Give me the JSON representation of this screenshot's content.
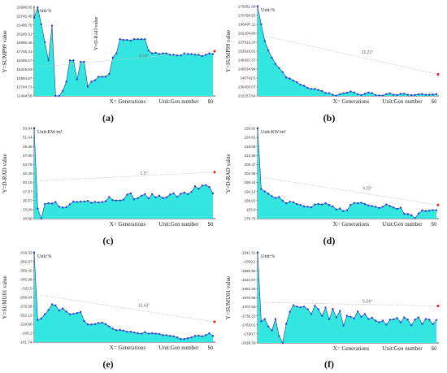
{
  "chart_data": [
    {
      "id": "a",
      "type": "area",
      "panel_label": "(a)",
      "ylabel": "Y=SUMP99 value",
      "xlabel": "X= Generations",
      "unit_x": "Unit:Gen number",
      "unit_y": "Unit:%",
      "x_end_label": "50",
      "inner_label": "Y=D-RAD value",
      "trend_label": "4.74°",
      "yticks": [
        "23996.05",
        "22745.49",
        "21495.75",
        "20245.61",
        "18995.46",
        "17745.31",
        "16495.17",
        "15245.02",
        "13994.87",
        "12744.73",
        "11494.58"
      ],
      "ylim": [
        11494.58,
        23996.05
      ],
      "xlim": [
        0,
        50
      ],
      "values": [
        22500,
        23996,
        21600,
        19100,
        16500,
        21400,
        11494,
        11494,
        12200,
        13500,
        16500,
        16500,
        13800,
        16300,
        16300,
        12800,
        13500,
        13700,
        14200,
        14200,
        14200,
        14600,
        16900,
        17500,
        19500,
        19400,
        19400,
        19300,
        19500,
        19500,
        19500,
        19500,
        17900,
        17500,
        17600,
        17400,
        17500,
        17500,
        17300,
        17300,
        17200,
        17200,
        17500,
        17400,
        17400,
        17300,
        17300,
        17100,
        17300,
        17500,
        17400
      ],
      "trend": [
        15600,
        17800
      ]
    },
    {
      "id": "b",
      "type": "area",
      "panel_label": "(b)",
      "ylabel": "Y=SUMP99 value",
      "xlabel": "X= Generations",
      "unit_x": "Unit:Gen number",
      "unit_y": "Unit:%",
      "x_end_label": "50",
      "trend_label": "15.21°",
      "yticks": [
        "175081.69",
        "170789.55",
        "166497.11",
        "162204.68",
        "157912.24",
        "153619.81",
        "149327.37",
        "145034.94",
        "140742.5",
        "136450.07",
        "132157.64"
      ],
      "ylim": [
        132157.64,
        175081.69
      ],
      "xlim": [
        0,
        50
      ],
      "values": [
        175081,
        166500,
        158500,
        154000,
        150500,
        147500,
        145500,
        143600,
        141000,
        140500,
        139500,
        138700,
        137500,
        137000,
        136000,
        135500,
        135500,
        135000,
        134500,
        133500,
        133500,
        132700,
        132300,
        133000,
        133500,
        133700,
        134300,
        133800,
        133000,
        132500,
        133200,
        133800,
        133500,
        132600,
        132400,
        132300,
        133000,
        133400,
        132700,
        132600,
        133100,
        133200,
        132700,
        132500,
        132600,
        132900,
        133000,
        132700,
        132700,
        132800,
        133000
      ],
      "trend": [
        161000,
        142500
      ]
    },
    {
      "id": "c",
      "type": "area",
      "panel_label": "(c)",
      "ylabel": "Y=D-RAD value",
      "xlabel": "X= Generations",
      "unit_x": "Unit:Gen number",
      "unit_y": "Unit:KW/m²",
      "x_end_label": "50",
      "trend_label": "3.5°",
      "yticks": [
        "53.94",
        "51.64",
        "49.35",
        "47.05",
        "44.75",
        "42.46",
        "40.16",
        "37.87",
        "35.57",
        "33.28",
        "30.98"
      ],
      "ylim": [
        30.98,
        53.94
      ],
      "xlim": [
        0,
        50
      ],
      "values": [
        53.94,
        33.5,
        31.0,
        34.7,
        34.9,
        34.8,
        35.2,
        34.0,
        33.8,
        33.9,
        34.6,
        35.3,
        35.2,
        35.3,
        35.3,
        35.5,
        35.0,
        35.2,
        35.1,
        35.2,
        35.4,
        36.5,
        35.7,
        35.6,
        35.6,
        35.8,
        37.1,
        37.4,
        35.9,
        36.2,
        36.8,
        37.2,
        36.1,
        37.2,
        36.4,
        36.8,
        36.2,
        36.4,
        37.1,
        37.4,
        36.5,
        37.3,
        37.6,
        37.2,
        37.8,
        39.2,
        38.6,
        39.4,
        39.5,
        39.0,
        37.4
      ],
      "trend": [
        40.6,
        42.8
      ]
    },
    {
      "id": "d",
      "type": "area",
      "panel_label": "(d)",
      "ylabel": "Y=D-RAD value",
      "xlabel": "X= Generations",
      "unit_x": "Unit:Gen number",
      "unit_y": "Unit:KW/m²",
      "x_end_label": "50",
      "trend_label": "9.25°",
      "yticks": [
        "229.92",
        "224.81",
        "219.69",
        "214.58",
        "209.47",
        "204.36",
        "199.24",
        "194.13",
        "189.02",
        "183.9",
        "178.79"
      ],
      "ylim": [
        178.79,
        229.92
      ],
      "xlim": [
        0,
        50
      ],
      "values": [
        229.92,
        195.6,
        194.2,
        192.9,
        191.5,
        190.5,
        191.0,
        189.0,
        187.5,
        188.4,
        188.0,
        187.0,
        186.5,
        185.7,
        185.5,
        185.2,
        186.8,
        187.1,
        186.8,
        187.5,
        186.5,
        185.7,
        184.0,
        184.5,
        183.0,
        183.5,
        186.5,
        187.7,
        187.5,
        187.8,
        187.0,
        186.3,
        185.9,
        185.5,
        184.8,
        185.5,
        186.8,
        185.9,
        185.1,
        184.3,
        185.0,
        181.5,
        181.4,
        180.8,
        179.0,
        181.7,
        183.4,
        183.1,
        183.3,
        183.6,
        183.5
      ],
      "trend": [
        202.0,
        186.5
      ]
    },
    {
      "id": "e",
      "type": "area",
      "panel_label": "(e)",
      "ylabel": "Y=SUMU01 value",
      "xlabel": "X= Generations",
      "unit_x": "Unit:Gen number",
      "unit_y": "Unit:%",
      "x_end_label": "50",
      "trend_label": "12.43°",
      "yticks": [
        "-416.33",
        "-392.87",
        "-369.42",
        "-345.96",
        "-322.5",
        "-299.04",
        "-275.58",
        "-252.12",
        "-228.66",
        "-205.2",
        "-181.74"
      ],
      "ylim": [
        -181.74,
        -416.33
      ],
      "xlim": [
        0,
        50
      ],
      "values": [
        -416.33,
        -240.0,
        -244.0,
        -255.0,
        -266.0,
        -281.0,
        -278.0,
        -265.0,
        -270.0,
        -262.0,
        -255.0,
        -256.0,
        -258.0,
        -261.0,
        -237.0,
        -228.5,
        -228.0,
        -229.0,
        -232.0,
        -232.5,
        -229.0,
        -223.0,
        -217.0,
        -213.0,
        -214.0,
        -212.0,
        -209.0,
        -209.0,
        -207.0,
        -205.0,
        -204.0,
        -208.0,
        -204.0,
        -205.0,
        -204.0,
        -203.0,
        -200.0,
        -200.0,
        -198.0,
        -197.0,
        -194.0,
        -190.0,
        -190.0,
        -192.0,
        -194.0,
        -198.0,
        -199.0,
        -197.0,
        -200.0,
        -205.0,
        -198.0
      ],
      "trend": [
        -305.0,
        -235.0
      ]
    },
    {
      "id": "f",
      "type": "area",
      "panel_label": "(f)",
      "ylabel": "Y=SUMU01 value",
      "xlabel": "X= Generations",
      "unit_x": "Unit:Gen number",
      "unit_y": "Unit:%",
      "x_end_label": "50",
      "trend_label": "5.24°",
      "yticks": [
        "-1541.51",
        "-1569.2",
        "-1596.88",
        "-1624.57",
        "-1652.26",
        "-1679.95",
        "-1707.63",
        "-1735.32",
        "-1763.01",
        "-1790.7",
        "-1818.39"
      ],
      "ylim": [
        -1818.39,
        -1541.51
      ],
      "xlim": [
        0,
        50
      ],
      "values": [
        -1541.51,
        -1752.0,
        -1745.0,
        -1768.0,
        -1780.0,
        -1745.0,
        -1797.0,
        -1818.39,
        -1760.0,
        -1723.0,
        -1703.0,
        -1707.0,
        -1709.0,
        -1707.0,
        -1715.0,
        -1730.0,
        -1704.0,
        -1715.0,
        -1735.0,
        -1710.0,
        -1746.0,
        -1714.0,
        -1740.0,
        -1720.0,
        -1765.0,
        -1735.0,
        -1738.0,
        -1743.0,
        -1722.0,
        -1738.0,
        -1730.0,
        -1745.0,
        -1741.0,
        -1750.0,
        -1755.0,
        -1750.0,
        -1762.0,
        -1747.0,
        -1746.0,
        -1742.0,
        -1755.0,
        -1740.0,
        -1747.0,
        -1764.0,
        -1747.0,
        -1740.0,
        -1760.0,
        -1745.0,
        -1747.0,
        -1761.0,
        -1748.0
      ],
      "trend": [
        -1694.0,
        -1705.0
      ]
    }
  ],
  "colors": {
    "fill": "#33e6e0",
    "line": "#1a3a9a",
    "point": "#2b3fd6",
    "last_point": "#e02020",
    "trend": "#c8c8c8"
  }
}
